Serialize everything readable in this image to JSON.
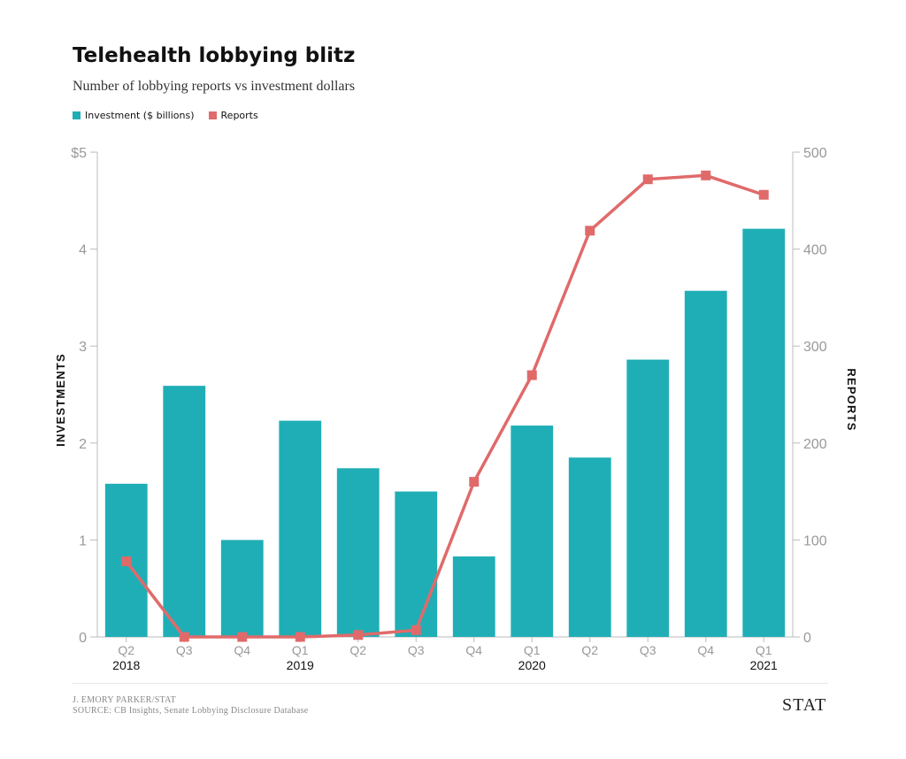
{
  "title": "Telehealth lobbying blitz",
  "subtitle": "Number of lobbying reports vs investment dollars",
  "legend": {
    "investment": "Investment ($ billions)",
    "reports": "Reports"
  },
  "colors": {
    "bar": "#20aeb6",
    "line": "#e06a6a",
    "axis": "#bbbbbb",
    "tick": "#999999"
  },
  "credit": {
    "author": "J. EMORY PARKER/STAT",
    "source": "SOURCE: CB Insights, Senate Lobbying Disclosure Database"
  },
  "brand": "STAT",
  "chart_data": {
    "type": "bar",
    "categories": [
      "Q2",
      "Q3",
      "Q4",
      "Q1",
      "Q2",
      "Q3",
      "Q4",
      "Q1",
      "Q2",
      "Q3",
      "Q4",
      "Q1"
    ],
    "years": [
      {
        "label": "2018",
        "index": 0
      },
      {
        "label": "2019",
        "index": 3
      },
      {
        "label": "2020",
        "index": 7
      },
      {
        "label": "2021",
        "index": 11
      }
    ],
    "series": [
      {
        "name": "Investment ($ billions)",
        "type": "bar",
        "axis": "left",
        "values": [
          1.58,
          2.59,
          1.0,
          2.23,
          1.74,
          1.5,
          0.83,
          2.18,
          1.85,
          2.86,
          3.57,
          4.21
        ]
      },
      {
        "name": "Reports",
        "type": "line",
        "axis": "right",
        "values": [
          78,
          0,
          0,
          0,
          2,
          7,
          160,
          270,
          419,
          472,
          476,
          456
        ]
      }
    ],
    "ylabel": "INVESTMENTS",
    "y2label": "REPORTS",
    "ylim": [
      0,
      5
    ],
    "y2lim": [
      0,
      500
    ],
    "yticks": [
      "0",
      "1",
      "2",
      "3",
      "4",
      "$5"
    ],
    "y2ticks": [
      "0",
      "100",
      "200",
      "300",
      "400",
      "500"
    ],
    "grid": false
  }
}
